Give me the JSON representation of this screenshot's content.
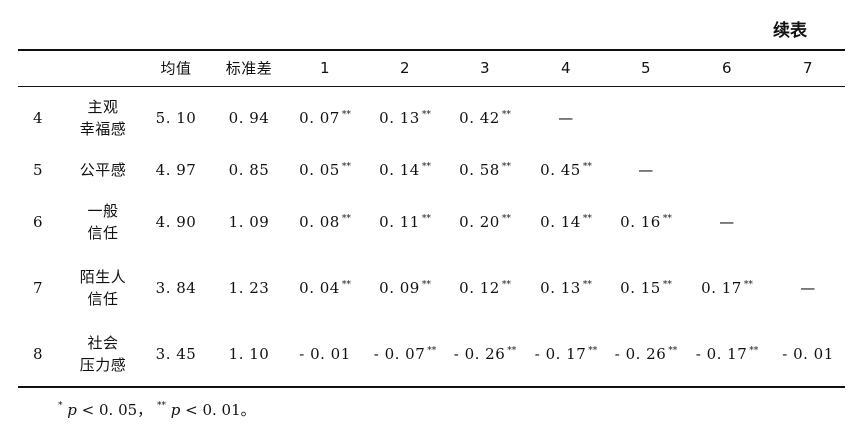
{
  "continued_label": "续表",
  "headers": [
    "均值",
    "标准差",
    "1",
    "2",
    "3",
    "4",
    "5",
    "6",
    "7"
  ],
  "rows": [
    {
      "id": "4",
      "label": [
        "主观",
        "幸福感"
      ],
      "mean": "5. 10",
      "sd": "0. 94",
      "cells": [
        {
          "v": "0. 07",
          "s": "**"
        },
        {
          "v": "0. 13",
          "s": "**"
        },
        {
          "v": "0. 42",
          "s": "**"
        },
        {
          "v": "—",
          "s": ""
        },
        null,
        null,
        null
      ]
    },
    {
      "id": "5",
      "label": [
        "公平感"
      ],
      "mean": "4. 97",
      "sd": "0. 85",
      "cells": [
        {
          "v": "0. 05",
          "s": "**"
        },
        {
          "v": "0. 14",
          "s": "**"
        },
        {
          "v": "0. 58",
          "s": "**"
        },
        {
          "v": "0. 45",
          "s": "**"
        },
        {
          "v": "—",
          "s": ""
        },
        null,
        null
      ]
    },
    {
      "id": "6",
      "label": [
        "一般",
        "信任"
      ],
      "mean": "4. 90",
      "sd": "1. 09",
      "cells": [
        {
          "v": "0. 08",
          "s": "**"
        },
        {
          "v": "0. 11",
          "s": "**"
        },
        {
          "v": "0. 20",
          "s": "**"
        },
        {
          "v": "0. 14",
          "s": "**"
        },
        {
          "v": "0. 16",
          "s": "**"
        },
        {
          "v": "—",
          "s": ""
        },
        null
      ]
    },
    {
      "id": "7",
      "label": [
        "陌生人",
        "信任"
      ],
      "mean": "3. 84",
      "sd": "1. 23",
      "cells": [
        {
          "v": "0. 04",
          "s": "**"
        },
        {
          "v": "0. 09",
          "s": "**"
        },
        {
          "v": "0. 12",
          "s": "**"
        },
        {
          "v": "0. 13",
          "s": "**"
        },
        {
          "v": "0. 15",
          "s": "**"
        },
        {
          "v": "0. 17",
          "s": "**"
        },
        {
          "v": "—",
          "s": ""
        }
      ]
    },
    {
      "id": "8",
      "label": [
        "社会",
        "压力感"
      ],
      "mean": "3. 45",
      "sd": "1. 10",
      "cells": [
        {
          "v": "- 0. 01",
          "s": ""
        },
        {
          "v": "- 0. 07",
          "s": "**"
        },
        {
          "v": "- 0. 26",
          "s": "**"
        },
        {
          "v": "- 0. 17",
          "s": "**"
        },
        {
          "v": "- 0. 26",
          "s": "**"
        },
        {
          "v": "- 0. 17",
          "s": "**"
        },
        {
          "v": "- 0. 01",
          "s": ""
        }
      ]
    }
  ],
  "footnote": {
    "mark1": "*",
    "p1": "p",
    "text1": " < 0. 05，",
    "mark2": "**",
    "p2": "p",
    "text2": " < 0. 01。"
  }
}
